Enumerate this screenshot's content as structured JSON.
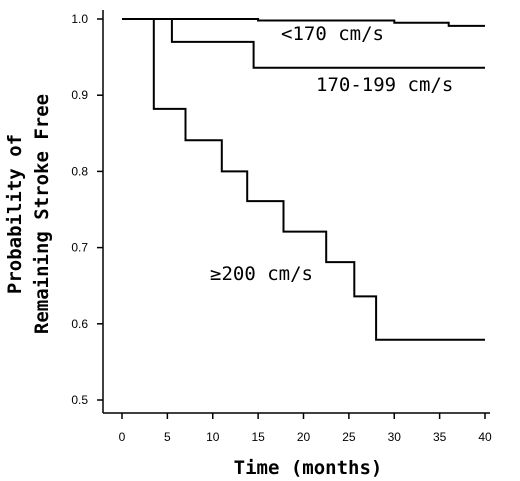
{
  "chart_data": {
    "type": "line",
    "step": true,
    "xlabel": "Time (months)",
    "ylabel_lines": [
      "Probability of",
      "Remaining Stroke Free"
    ],
    "xlim": [
      0,
      40
    ],
    "ylim": [
      0.5,
      1.0
    ],
    "x_ticks": [
      0,
      5,
      10,
      15,
      20,
      25,
      30,
      35,
      40
    ],
    "y_ticks": [
      0.5,
      0.6,
      0.7,
      0.8,
      0.9,
      1.0
    ],
    "y_tick_labels": [
      "0.5",
      "0.6",
      "0.7",
      "0.8",
      "0.9",
      "1.0"
    ],
    "series": [
      {
        "name": "<170 cm/s",
        "points": [
          [
            0,
            1.0
          ],
          [
            15,
            1.0
          ],
          [
            15,
            0.998
          ],
          [
            30,
            0.998
          ],
          [
            30,
            0.995
          ],
          [
            36,
            0.995
          ],
          [
            36,
            0.991
          ],
          [
            40,
            0.991
          ]
        ]
      },
      {
        "name": "170-199 cm/s",
        "points": [
          [
            0,
            1.0
          ],
          [
            5.5,
            1.0
          ],
          [
            5.5,
            0.97
          ],
          [
            14.5,
            0.97
          ],
          [
            14.5,
            0.936
          ],
          [
            40,
            0.936
          ]
        ]
      },
      {
        "name": "≥200 cm/s",
        "points": [
          [
            0,
            1.0
          ],
          [
            3.5,
            1.0
          ],
          [
            3.5,
            0.882
          ],
          [
            7,
            0.882
          ],
          [
            7,
            0.841
          ],
          [
            11,
            0.841
          ],
          [
            11,
            0.8
          ],
          [
            13.8,
            0.8
          ],
          [
            13.8,
            0.761
          ],
          [
            17.8,
            0.761
          ],
          [
            17.8,
            0.721
          ],
          [
            22.5,
            0.721
          ],
          [
            22.5,
            0.681
          ],
          [
            25.6,
            0.681
          ],
          [
            25.6,
            0.636
          ],
          [
            28,
            0.636
          ],
          [
            28,
            0.579
          ],
          [
            40,
            0.579
          ]
        ]
      }
    ]
  }
}
